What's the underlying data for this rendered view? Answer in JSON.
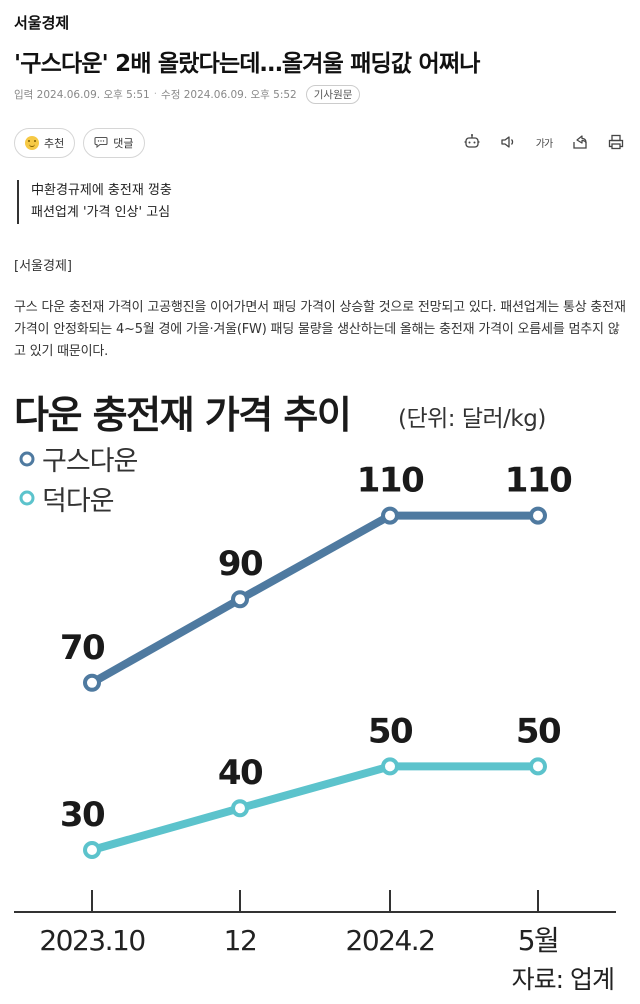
{
  "article": {
    "press": "서울경제",
    "headline": "'구스다운' 2배 올랐다는데…올겨울 패딩값 어쩌나",
    "meta": {
      "published": "입력 2024.06.09. 오후 5:51",
      "modified": "수정 2024.06.09. 오후 5:52",
      "original_button": "기사원문"
    },
    "actions": {
      "recommend": "추천",
      "comment": "댓글"
    },
    "tools": {
      "font_size_label": "가가"
    },
    "summary": [
      "中환경규제에 충전재 껑충",
      "패션업계 '가격 인상' 고심"
    ],
    "tag": "[서울경제]",
    "body": "구스 다운 충전재 가격이 고공행진을 이어가면서 패딩 가격이 상승할 것으로 전망되고 있다. 패션업계는 통상 충전재 가격이 안정화되는 4~5월 경에 가을·겨울(FW) 패딩 물량을 생산하는데 올해는 충전재 가격이 오름세를 멈추지 않고 있기 때문이다."
  },
  "chart_data": {
    "type": "line",
    "title": "다운 충전재 가격 추이",
    "unit": "(단위: 달러/kg)",
    "categories": [
      "2023.10",
      "12",
      "2024.2",
      "5월"
    ],
    "series": [
      {
        "name": "구스다운",
        "color": "#4f7aa0",
        "values": [
          70,
          90,
          110,
          110
        ]
      },
      {
        "name": "덕다운",
        "color": "#5cc3cc",
        "values": [
          30,
          40,
          50,
          50
        ]
      }
    ],
    "source": "자료: 업계"
  }
}
